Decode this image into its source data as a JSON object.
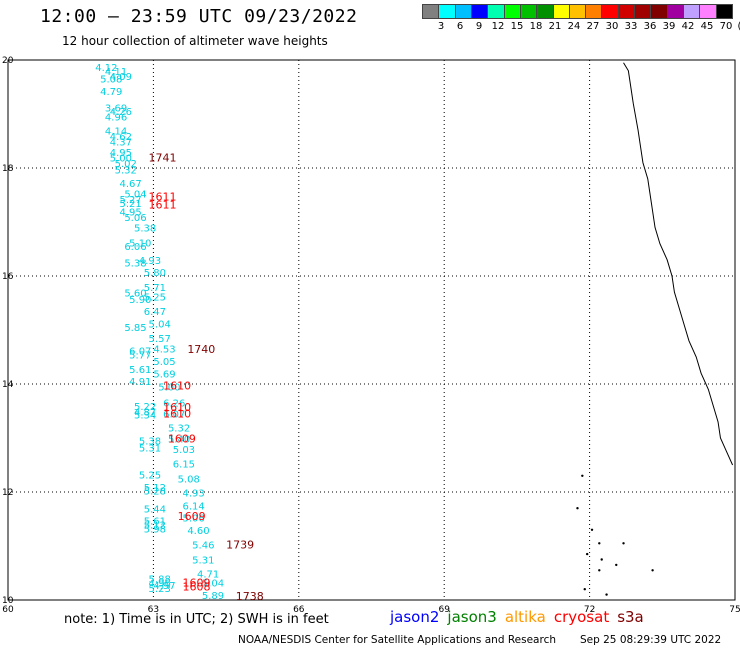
{
  "header": {
    "title": "12:00 – 23:59 UTC 09/23/2022",
    "subtitle": "12 hour collection of altimeter wave heights"
  },
  "color_scale": {
    "swatches": [
      "#808080",
      "#00ffff",
      "#00bfff",
      "#0000ff",
      "#00ffb0",
      "#00ff00",
      "#00c000",
      "#009000",
      "#ffff00",
      "#ffc000",
      "#ff8000",
      "#ff0000",
      "#d00000",
      "#a00000",
      "#800000",
      "#a000a0",
      "#c0a0ff",
      "#ff80ff",
      "#000000"
    ],
    "labels": [
      "3",
      "6",
      "9",
      "12",
      "15",
      "18",
      "21",
      "24",
      "27",
      "30",
      "33",
      "36",
      "39",
      "42",
      "45",
      "70",
      "(ft)"
    ]
  },
  "map": {
    "lon_ticks": [
      "60",
      "63",
      "66",
      "69",
      "72",
      "75"
    ],
    "lat_ticks": [
      "20",
      "18",
      "16",
      "14",
      "12",
      "10"
    ],
    "swh_readings": [
      {
        "v": "4.12",
        "lon": 61.8,
        "lat": 19.8
      },
      {
        "v": "4.11",
        "lon": 62.0,
        "lat": 19.72
      },
      {
        "v": "4.09",
        "lon": 62.1,
        "lat": 19.63
      },
      {
        "v": "5.08",
        "lon": 61.9,
        "lat": 19.58
      },
      {
        "v": "4.79",
        "lon": 61.9,
        "lat": 19.35
      },
      {
        "v": "3.69",
        "lon": 62.0,
        "lat": 19.05
      },
      {
        "v": "4.26",
        "lon": 62.1,
        "lat": 18.98
      },
      {
        "v": "4.96",
        "lon": 62.0,
        "lat": 18.88
      },
      {
        "v": "4.14",
        "lon": 62.0,
        "lat": 18.62
      },
      {
        "v": "4.62",
        "lon": 62.1,
        "lat": 18.52
      },
      {
        "v": "4.37",
        "lon": 62.1,
        "lat": 18.42
      },
      {
        "v": "4.95",
        "lon": 62.1,
        "lat": 18.22
      },
      {
        "v": "5.00",
        "lon": 62.1,
        "lat": 18.12
      },
      {
        "v": "5.02",
        "lon": 62.2,
        "lat": 18.02
      },
      {
        "v": "5.32",
        "lon": 62.2,
        "lat": 17.9
      },
      {
        "v": "4.67",
        "lon": 62.3,
        "lat": 17.65
      },
      {
        "v": "5.04",
        "lon": 62.4,
        "lat": 17.45
      },
      {
        "v": "5.27",
        "lon": 62.3,
        "lat": 17.35
      },
      {
        "v": "5.21",
        "lon": 62.3,
        "lat": 17.28
      },
      {
        "v": "4.95",
        "lon": 62.3,
        "lat": 17.12
      },
      {
        "v": "5.06",
        "lon": 62.4,
        "lat": 17.02
      },
      {
        "v": "5.38",
        "lon": 62.6,
        "lat": 16.82
      },
      {
        "v": "5.10",
        "lon": 62.5,
        "lat": 16.55
      },
      {
        "v": "6.06",
        "lon": 62.4,
        "lat": 16.48
      },
      {
        "v": "4.93",
        "lon": 62.7,
        "lat": 16.22
      },
      {
        "v": "5.38",
        "lon": 62.4,
        "lat": 16.18
      },
      {
        "v": "5.80",
        "lon": 62.8,
        "lat": 16.0
      },
      {
        "v": "5.71",
        "lon": 62.8,
        "lat": 15.72
      },
      {
        "v": "5.60",
        "lon": 62.4,
        "lat": 15.62
      },
      {
        "v": "5.25",
        "lon": 62.8,
        "lat": 15.55
      },
      {
        "v": "5.90",
        "lon": 62.5,
        "lat": 15.5
      },
      {
        "v": "6.47",
        "lon": 62.8,
        "lat": 15.28
      },
      {
        "v": "5.04",
        "lon": 62.9,
        "lat": 15.05
      },
      {
        "v": "5.85",
        "lon": 62.4,
        "lat": 14.98
      },
      {
        "v": "5.57",
        "lon": 62.9,
        "lat": 14.78
      },
      {
        "v": "4.53",
        "lon": 63.0,
        "lat": 14.58
      },
      {
        "v": "6.07",
        "lon": 62.5,
        "lat": 14.55
      },
      {
        "v": "5.77",
        "lon": 62.5,
        "lat": 14.47
      },
      {
        "v": "5.05",
        "lon": 63.0,
        "lat": 14.35
      },
      {
        "v": "5.61",
        "lon": 62.5,
        "lat": 14.2
      },
      {
        "v": "5.69",
        "lon": 63.0,
        "lat": 14.12
      },
      {
        "v": "4.91",
        "lon": 62.5,
        "lat": 13.98
      },
      {
        "v": "5.00",
        "lon": 63.1,
        "lat": 13.88
      },
      {
        "v": "6.26",
        "lon": 63.2,
        "lat": 13.58
      },
      {
        "v": "5.22",
        "lon": 62.6,
        "lat": 13.52
      },
      {
        "v": "4.87",
        "lon": 62.6,
        "lat": 13.42
      },
      {
        "v": "5.34",
        "lon": 62.6,
        "lat": 13.36
      },
      {
        "v": "6.07",
        "lon": 63.2,
        "lat": 13.38
      },
      {
        "v": "5.32",
        "lon": 63.3,
        "lat": 13.12
      },
      {
        "v": "5.40",
        "lon": 63.3,
        "lat": 12.92
      },
      {
        "v": "5.38",
        "lon": 62.7,
        "lat": 12.88
      },
      {
        "v": "5.31",
        "lon": 62.7,
        "lat": 12.75
      },
      {
        "v": "5.03",
        "lon": 63.4,
        "lat": 12.72
      },
      {
        "v": "6.15",
        "lon": 63.4,
        "lat": 12.45
      },
      {
        "v": "5.25",
        "lon": 62.7,
        "lat": 12.25
      },
      {
        "v": "5.08",
        "lon": 63.5,
        "lat": 12.18
      },
      {
        "v": "5.12",
        "lon": 62.8,
        "lat": 12.02
      },
      {
        "v": "4.93",
        "lon": 63.6,
        "lat": 11.92
      },
      {
        "v": "5.28",
        "lon": 62.8,
        "lat": 11.95
      },
      {
        "v": "6.14",
        "lon": 63.6,
        "lat": 11.68
      },
      {
        "v": "5.44",
        "lon": 62.8,
        "lat": 11.62
      },
      {
        "v": "5.06",
        "lon": 63.6,
        "lat": 11.45
      },
      {
        "v": "5.61",
        "lon": 62.8,
        "lat": 11.4
      },
      {
        "v": "5.12",
        "lon": 62.8,
        "lat": 11.32
      },
      {
        "v": "5.98",
        "lon": 62.8,
        "lat": 11.25
      },
      {
        "v": "4.60",
        "lon": 63.7,
        "lat": 11.22
      },
      {
        "v": "5.46",
        "lon": 63.8,
        "lat": 10.95
      },
      {
        "v": "5.31",
        "lon": 63.8,
        "lat": 10.68
      },
      {
        "v": "4.71",
        "lon": 63.9,
        "lat": 10.42
      },
      {
        "v": "5.88",
        "lon": 62.9,
        "lat": 10.32
      },
      {
        "v": "4.96",
        "lon": 62.9,
        "lat": 10.25
      },
      {
        "v": "4.97",
        "lon": 63.0,
        "lat": 10.2
      },
      {
        "v": "5.23",
        "lon": 62.9,
        "lat": 10.15
      },
      {
        "v": "5.04",
        "lon": 64.0,
        "lat": 10.25
      },
      {
        "v": "5.89",
        "lon": 64.0,
        "lat": 10.02
      }
    ],
    "time_labels": [
      {
        "v": "1741",
        "lon": 62.9,
        "lat": 18.12,
        "color": "#800000"
      },
      {
        "v": "1611",
        "lon": 62.9,
        "lat": 17.4,
        "color": "#ff0000"
      },
      {
        "v": "1611",
        "lon": 62.9,
        "lat": 17.25,
        "color": "#ff0000"
      },
      {
        "v": "1740",
        "lon": 63.7,
        "lat": 14.57,
        "color": "#800000"
      },
      {
        "v": "1610",
        "lon": 63.2,
        "lat": 13.9,
        "color": "#ff0000"
      },
      {
        "v": "1610",
        "lon": 63.2,
        "lat": 13.5,
        "color": "#ff0000"
      },
      {
        "v": "1610",
        "lon": 63.2,
        "lat": 13.38,
        "color": "#ff0000"
      },
      {
        "v": "1609",
        "lon": 63.3,
        "lat": 12.92,
        "color": "#ff0000"
      },
      {
        "v": "1609",
        "lon": 63.5,
        "lat": 11.48,
        "color": "#ff0000"
      },
      {
        "v": "1739",
        "lon": 64.5,
        "lat": 10.95,
        "color": "#800000"
      },
      {
        "v": "1609",
        "lon": 63.6,
        "lat": 10.25,
        "color": "#ff0000"
      },
      {
        "v": "1608",
        "lon": 63.6,
        "lat": 10.18,
        "color": "#ff0000"
      },
      {
        "v": "1738",
        "lon": 64.7,
        "lat": 10.0,
        "color": "#800000"
      }
    ],
    "swh_color": "#00d0e0"
  },
  "note": "note: 1) Time is in UTC; 2) SWH is in feet",
  "satellites": [
    {
      "name": "jason2",
      "color": "#0000ff"
    },
    {
      "name": "jason3",
      "color": "#008000"
    },
    {
      "name": "altika",
      "color": "#ff9900"
    },
    {
      "name": "cryosat",
      "color": "#ff0000"
    },
    {
      "name": "s3a",
      "color": "#800000"
    }
  ],
  "credit": "NOAA/NESDIS Center for Satellite Applications and Research",
  "timestamp": "Sep 25 08:29:39 UTC 2022"
}
